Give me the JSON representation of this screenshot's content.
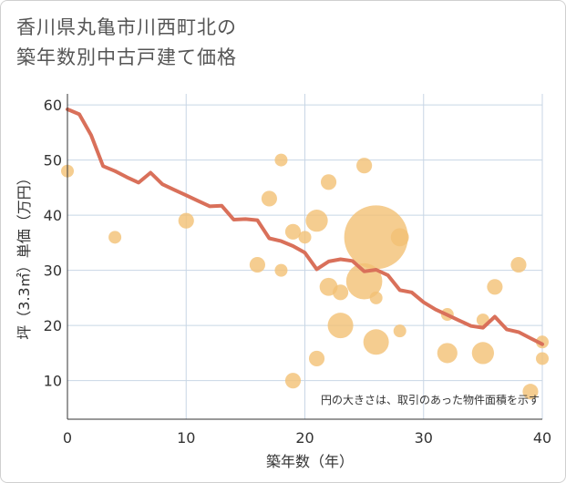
{
  "title_line1": "香川県丸亀市川西町北の",
  "title_line2": "築年数別中古戸建て価格",
  "chart_data": {
    "type": "scatter",
    "xlabel": "築年数（年）",
    "ylabel": "坪（3.3㎡）単価（万円）",
    "xlim": [
      0,
      40
    ],
    "ylim": [
      3,
      62
    ],
    "xticks": [
      0,
      10,
      20,
      30,
      40
    ],
    "yticks": [
      10,
      20,
      30,
      40,
      50,
      60
    ],
    "grid": true,
    "note": "円の大きさは、取引のあった物件面積を示す",
    "colors": {
      "bubble": "#f2c174",
      "line": "#d9705a",
      "grid": "#c8d6e5"
    },
    "bubbles": [
      {
        "x": 0,
        "y": 48,
        "size": 1
      },
      {
        "x": 4,
        "y": 36,
        "size": 1
      },
      {
        "x": 10,
        "y": 39,
        "size": 1.5
      },
      {
        "x": 16,
        "y": 31,
        "size": 1.5
      },
      {
        "x": 17,
        "y": 43,
        "size": 1.5
      },
      {
        "x": 18,
        "y": 50,
        "size": 1
      },
      {
        "x": 18,
        "y": 30,
        "size": 1
      },
      {
        "x": 19,
        "y": 37,
        "size": 1.5
      },
      {
        "x": 19,
        "y": 10,
        "size": 1.5
      },
      {
        "x": 20,
        "y": 36,
        "size": 1
      },
      {
        "x": 21,
        "y": 39,
        "size": 3
      },
      {
        "x": 21,
        "y": 14,
        "size": 1.5
      },
      {
        "x": 22,
        "y": 46,
        "size": 1.5
      },
      {
        "x": 22,
        "y": 27,
        "size": 2
      },
      {
        "x": 23,
        "y": 26,
        "size": 1.5
      },
      {
        "x": 23,
        "y": 20,
        "size": 4
      },
      {
        "x": 25,
        "y": 49,
        "size": 1.5
      },
      {
        "x": 25,
        "y": 28,
        "size": 8
      },
      {
        "x": 26,
        "y": 36,
        "size": 25
      },
      {
        "x": 26,
        "y": 25,
        "size": 1
      },
      {
        "x": 26,
        "y": 17,
        "size": 4
      },
      {
        "x": 28,
        "y": 36,
        "size": 2
      },
      {
        "x": 28,
        "y": 19,
        "size": 1
      },
      {
        "x": 32,
        "y": 22,
        "size": 1
      },
      {
        "x": 32,
        "y": 15,
        "size": 2.5
      },
      {
        "x": 35,
        "y": 21,
        "size": 1
      },
      {
        "x": 35,
        "y": 15,
        "size": 3
      },
      {
        "x": 36,
        "y": 27,
        "size": 1.5
      },
      {
        "x": 38,
        "y": 31,
        "size": 1.5
      },
      {
        "x": 39,
        "y": 8,
        "size": 1.5
      },
      {
        "x": 40,
        "y": 17,
        "size": 1
      },
      {
        "x": 40,
        "y": 14,
        "size": 1
      }
    ],
    "series": [
      {
        "x": [
          0,
          1,
          2,
          3,
          4,
          5,
          6,
          7,
          8,
          9,
          10,
          11,
          12,
          13,
          14,
          15,
          16,
          17,
          18,
          19,
          20,
          21,
          22,
          23,
          24,
          25,
          26,
          27,
          28,
          29,
          30,
          31,
          32,
          33,
          34,
          35,
          36,
          37,
          38,
          39,
          40
        ],
        "values": [
          59.2,
          58.3,
          54.5,
          48.9,
          48.0,
          46.9,
          45.9,
          47.7,
          45.6,
          44.6,
          43.6,
          42.6,
          41.6,
          41.7,
          39.2,
          39.3,
          39.1,
          35.8,
          35.3,
          34.4,
          33.2,
          30.2,
          31.6,
          32.0,
          31.7,
          29.8,
          30.1,
          29.1,
          26.4,
          26.0,
          24.2,
          22.9,
          21.9,
          20.9,
          19.9,
          19.6,
          21.6,
          19.3,
          18.8,
          17.7,
          16.6
        ]
      }
    ]
  }
}
